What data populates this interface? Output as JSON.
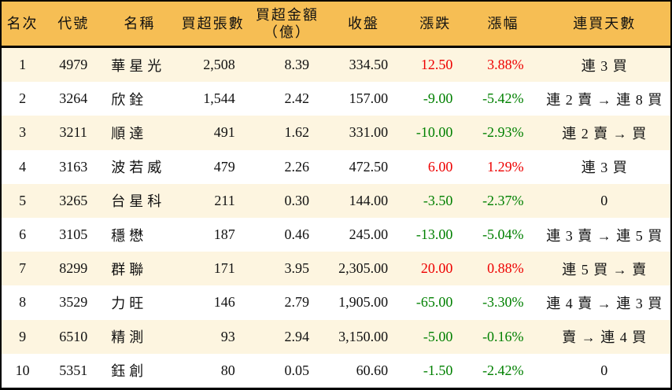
{
  "colors": {
    "header_bg": "#F6BE54",
    "row_alt_bg": "#FDF5E0",
    "row_bg": "#FFFFFF",
    "border": "#000000",
    "text": "#111111",
    "up_red": "#EE0000",
    "down_green": "#008000"
  },
  "chart_data": {
    "type": "table",
    "title": "",
    "columns": [
      "名次",
      "代號",
      "名稱",
      "買超張數",
      "買超金額\n（億）",
      "收盤",
      "漲跌",
      "漲幅",
      "連買天數"
    ],
    "rows": [
      [
        "1",
        "4979",
        "華星光",
        "2,508",
        "8.39",
        "334.50",
        "12.50",
        "3.88%",
        "連 3 買"
      ],
      [
        "2",
        "3264",
        "欣銓",
        "1,544",
        "2.42",
        "157.00",
        "-9.00",
        "-5.42%",
        "連 2 賣 → 連 8 買"
      ],
      [
        "3",
        "3211",
        "順達",
        "491",
        "1.62",
        "331.00",
        "-10.00",
        "-2.93%",
        "連 2 賣 → 買"
      ],
      [
        "4",
        "3163",
        "波若威",
        "479",
        "2.26",
        "472.50",
        "6.00",
        "1.29%",
        "連 3 買"
      ],
      [
        "5",
        "3265",
        "台星科",
        "211",
        "0.30",
        "144.00",
        "-3.50",
        "-2.37%",
        "0"
      ],
      [
        "6",
        "3105",
        "穩懋",
        "187",
        "0.46",
        "245.00",
        "-13.00",
        "-5.04%",
        "連 3 賣 → 連 5 買"
      ],
      [
        "7",
        "8299",
        "群聯",
        "171",
        "3.95",
        "2,305.00",
        "20.00",
        "0.88%",
        "連 5 買 → 賣"
      ],
      [
        "8",
        "3529",
        "力旺",
        "146",
        "2.79",
        "1,905.00",
        "-65.00",
        "-3.30%",
        "連 4 賣 → 連 3 買"
      ],
      [
        "9",
        "6510",
        "精測",
        "93",
        "2.94",
        "3,150.00",
        "-5.00",
        "-0.16%",
        "賣 → 連 4 買"
      ],
      [
        "10",
        "5351",
        "鈺創",
        "80",
        "0.05",
        "60.60",
        "-1.50",
        "-2.42%",
        "0"
      ]
    ]
  }
}
